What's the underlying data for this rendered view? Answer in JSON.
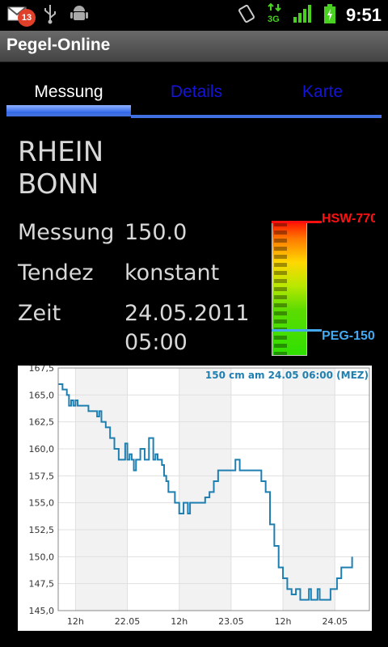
{
  "status_bar": {
    "notification_count": "13",
    "time": "9:51",
    "icons": [
      "gmail-icon",
      "usb-icon",
      "android-debug-icon",
      "vibrate-icon",
      "3g-data-icon",
      "signal-icon",
      "battery-charging-icon"
    ]
  },
  "app_title": "Pegel-Online",
  "tabs": [
    {
      "label": "Messung",
      "active": true
    },
    {
      "label": "Details",
      "active": false
    },
    {
      "label": "Karte",
      "active": false
    }
  ],
  "station": {
    "river": "RHEIN",
    "location": "BONN"
  },
  "measurement": {
    "messung_label": "Messung",
    "messung_value": "150.0",
    "tendenz_label": "Tendez",
    "tendenz_value": "konstant",
    "zeit_label": "Zeit",
    "zeit_date": "24.05.2011",
    "zeit_time": "05:00"
  },
  "gauge": {
    "hsw_label": "HSW-770",
    "peg_label": "PEG-150",
    "colors": {
      "hsw": "#ff1010",
      "peg": "#44aaf0"
    }
  },
  "chart_data": {
    "type": "line",
    "title": "150 cm am 24.05 06:00 (MEZ)",
    "y_ticks": [
      "167,5",
      "165,0",
      "162,5",
      "160,0",
      "157,5",
      "155,0",
      "152,5",
      "150,0",
      "147,5",
      "145,0"
    ],
    "ylim": [
      145.0,
      167.5
    ],
    "x_ticks": [
      "12h",
      "22.05",
      "12h",
      "23.05",
      "12h",
      "24.05"
    ],
    "x_tick_hours": [
      12,
      24,
      36,
      48,
      60,
      72
    ],
    "xlim_hours": [
      8,
      80
    ],
    "grid": true,
    "line_color": "#1f7fb0",
    "series": [
      {
        "hours": [
          8,
          9,
          10,
          10.5,
          11,
          11.5,
          12,
          12.5,
          13,
          14,
          15,
          16,
          17,
          17.5,
          18,
          19,
          20,
          21,
          22,
          23,
          23.5,
          24,
          24.5,
          25,
          25.5,
          26,
          27,
          28,
          29,
          30,
          30.5,
          31,
          31.5,
          32,
          32.5,
          33,
          33.5,
          34,
          35,
          35.5,
          36,
          37,
          38,
          38.5,
          39,
          39.5,
          40,
          41,
          42,
          43,
          44,
          45,
          46,
          47,
          48,
          49,
          50,
          51,
          52,
          53,
          54,
          55,
          56,
          57,
          58,
          59,
          60,
          61,
          62,
          63,
          64,
          65,
          66,
          66.5,
          67,
          67.5,
          68,
          68.5,
          69,
          69.5,
          70,
          71,
          72,
          72.5,
          73,
          73.5,
          74,
          75,
          76
        ],
        "values": [
          166.0,
          165.5,
          165.0,
          164.0,
          164.5,
          164.0,
          164.5,
          164.0,
          164.0,
          164.0,
          163.5,
          163.5,
          163.0,
          163.5,
          162.5,
          162.0,
          161.0,
          160.0,
          159.0,
          159.0,
          160.5,
          159.0,
          159.5,
          159.0,
          158.0,
          159.0,
          160.0,
          159.0,
          161.0,
          159.0,
          159.5,
          159.0,
          159.0,
          158.5,
          157.5,
          157.0,
          156.0,
          156.0,
          155.0,
          155.0,
          154.0,
          155.0,
          154.0,
          155.0,
          155.0,
          155.0,
          155.0,
          155.0,
          155.5,
          156.0,
          157.0,
          158.0,
          158.0,
          158.0,
          158.0,
          159.0,
          158.0,
          158.0,
          158.0,
          158.0,
          158.0,
          157.0,
          156.0,
          153.0,
          151.0,
          149.0,
          148.0,
          147.0,
          146.5,
          147.0,
          146.0,
          146.0,
          147.0,
          146.0,
          146.0,
          146.0,
          147.0,
          146.0,
          146.0,
          146.0,
          146.0,
          147.0,
          147.0,
          148.0,
          148.0,
          149.0,
          149.0,
          149.0,
          150.0
        ]
      }
    ]
  }
}
